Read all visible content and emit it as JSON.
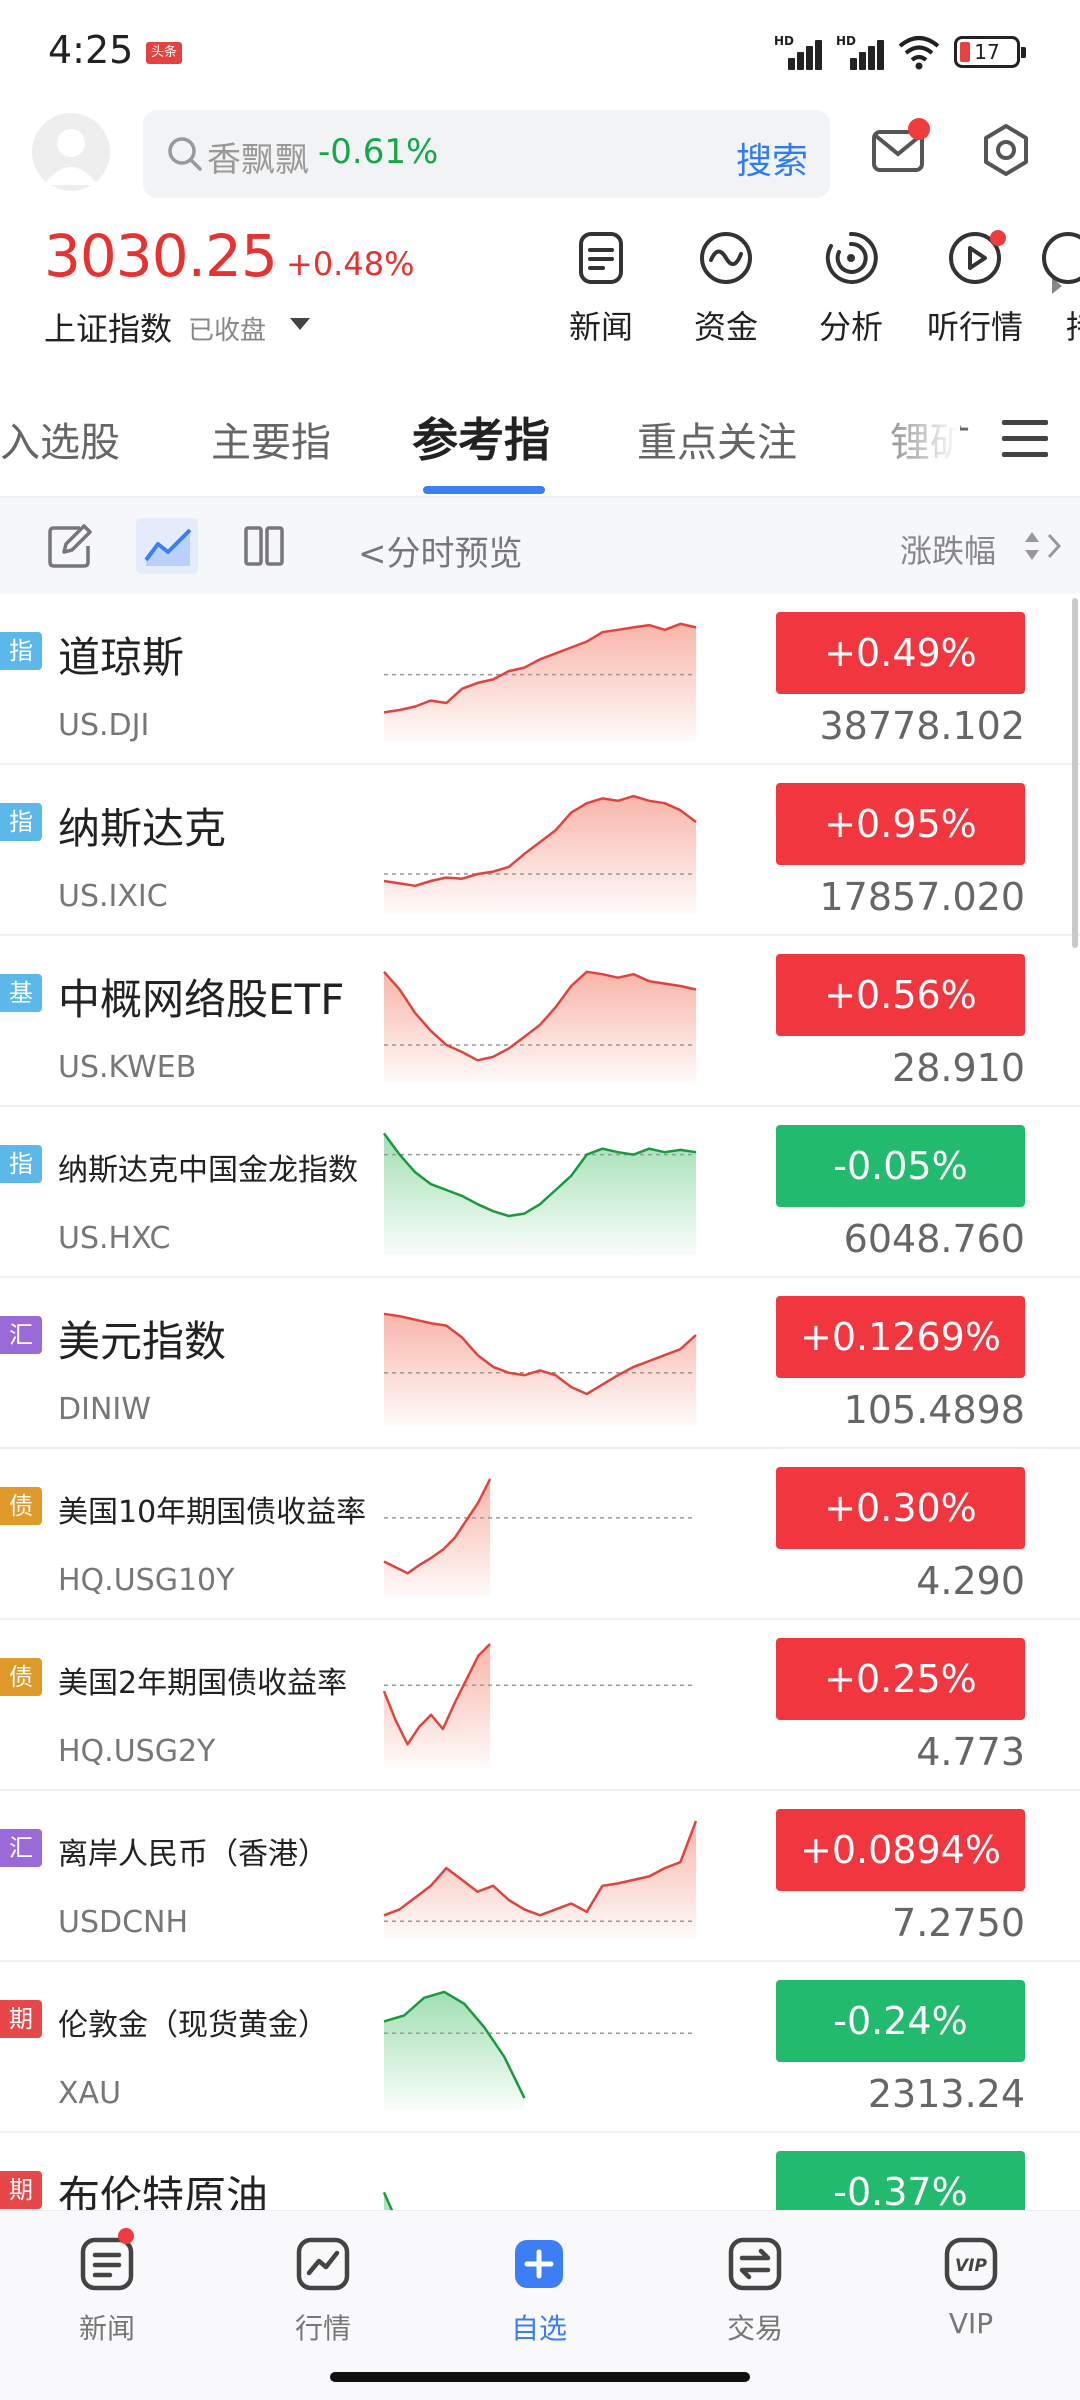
{
  "status_bar": {
    "time": "4:25",
    "app_badge": "头条",
    "battery": "17",
    "signal_label": "HD"
  },
  "header": {
    "search_name": "香飘飘",
    "search_change": "-0.61%",
    "search_button": "搜索",
    "search_change_color": "#14a84a"
  },
  "index": {
    "value": "3030.25",
    "change": "+0.48%",
    "name": "上证指数",
    "status": "已收盘"
  },
  "quick_links": [
    {
      "label": "新闻",
      "icon": "news-icon"
    },
    {
      "label": "资金",
      "icon": "fund-icon"
    },
    {
      "label": "分析",
      "icon": "analysis-icon"
    },
    {
      "label": "听行情",
      "icon": "play-icon"
    },
    {
      "label": "持",
      "icon": "more-icon"
    }
  ],
  "tabs": [
    "入选股",
    "主要指",
    "参考指",
    "重点关注",
    "锂矿"
  ],
  "active_tab_index": 2,
  "toolbar": {
    "preview_label": "<分时预览",
    "sort_label": "涨跌幅"
  },
  "rows": [
    {
      "tag": "指",
      "tag_color": "#5bb8e8",
      "name": "道琼斯",
      "code": "US.DJI",
      "change": "+0.49%",
      "price": "38778.102",
      "direction": "up",
      "name_size": "large"
    },
    {
      "tag": "指",
      "tag_color": "#5bb8e8",
      "name": "纳斯达克",
      "code": "US.IXIC",
      "change": "+0.95%",
      "price": "17857.020",
      "direction": "up",
      "name_size": "large"
    },
    {
      "tag": "基",
      "tag_color": "#5bb8e8",
      "name": "中概网络股ETF",
      "code": "US.KWEB",
      "change": "+0.56%",
      "price": "28.910",
      "direction": "up",
      "name_size": "large"
    },
    {
      "tag": "指",
      "tag_color": "#5bb8e8",
      "name": "纳斯达克中国金龙指数",
      "code": "US.HXC",
      "change": "-0.05%",
      "price": "6048.760",
      "direction": "down",
      "name_size": "small"
    },
    {
      "tag": "汇",
      "tag_color": "#9b6ad9",
      "name": "美元指数",
      "code": "DINIW",
      "change": "+0.1269%",
      "price": "105.4898",
      "direction": "up",
      "name_size": "large"
    },
    {
      "tag": "债",
      "tag_color": "#e09a2a",
      "name": "美国10年期国债收益率",
      "code": "HQ.USG10Y",
      "change": "+0.30%",
      "price": "4.290",
      "direction": "up",
      "name_size": "small"
    },
    {
      "tag": "债",
      "tag_color": "#e09a2a",
      "name": "美国2年期国债收益率",
      "code": "HQ.USG2Y",
      "change": "+0.25%",
      "price": "4.773",
      "direction": "up",
      "name_size": "small"
    },
    {
      "tag": "汇",
      "tag_color": "#9b6ad9",
      "name": "离岸人民币（香港）",
      "code": "USDCNH",
      "change": "+0.0894%",
      "price": "7.2750",
      "direction": "up",
      "name_size": "small"
    },
    {
      "tag": "期",
      "tag_color": "#e8474a",
      "name": "伦敦金（现货黄金）",
      "code": "XAU",
      "change": "-0.24%",
      "price": "2313.24",
      "direction": "down",
      "name_size": "small"
    },
    {
      "tag": "期",
      "tag_color": "#e8474a",
      "name": "布伦特原油",
      "code": "",
      "change": "-0.37%",
      "price": "",
      "direction": "down",
      "name_size": "large"
    }
  ],
  "bottom_nav": [
    {
      "label": "新闻",
      "icon": "news-icon"
    },
    {
      "label": "行情",
      "icon": "market-icon"
    },
    {
      "label": "自选",
      "icon": "watchlist-icon"
    },
    {
      "label": "交易",
      "icon": "trade-icon"
    },
    {
      "label": "VIP",
      "icon": "vip-icon"
    }
  ],
  "active_nav_index": 2,
  "colors": {
    "up": "#f23640",
    "down": "#22ba6c",
    "accent": "#3d7ef6"
  }
}
